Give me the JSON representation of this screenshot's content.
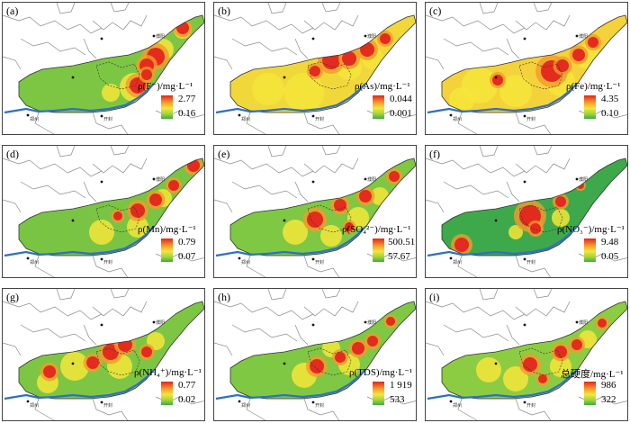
{
  "panels": [
    {
      "label": "(a)",
      "title": "ρ(F⁻)/mg·L⁻¹",
      "max": "2.77",
      "min": "0.16"
    },
    {
      "label": "(b)",
      "title": "ρ(As)/mg·L⁻¹",
      "max": "0.044",
      "min": "0.001"
    },
    {
      "label": "(c)",
      "title": "ρ(Fe)/mg·L⁻¹",
      "max": "4.35",
      "min": "0.10"
    },
    {
      "label": "(d)",
      "title": "ρ(Mn)/mg·L⁻¹",
      "max": "0.79",
      "min": "0.07"
    },
    {
      "label": "(e)",
      "title": "ρ(SO₄²⁻)/mg·L⁻¹",
      "max": "500.51",
      "min": "57.67"
    },
    {
      "label": "(f)",
      "title": "ρ(NO₃⁻)/mg·L⁻¹",
      "max": "9.48",
      "min": "0.05"
    },
    {
      "label": "(g)",
      "title": "ρ(NH₄⁺)/mg·L⁻¹",
      "max": "0.77",
      "min": "0.02"
    },
    {
      "label": "(h)",
      "title": "ρ(TDS)/mg·L⁻¹",
      "max": "1 919",
      "min": "533"
    },
    {
      "label": "(i)",
      "title": "总硬度/mg·L⁻¹",
      "max": "986",
      "min": "322"
    }
  ],
  "cities": {
    "c1": "濮阳",
    "c2": "郑州",
    "c3": "开封"
  },
  "colors": {
    "high": "#e3251d",
    "mid": "#f5e63a",
    "low": "#3ea94a",
    "river": "#2e6fc9",
    "boundary": "#555555"
  }
}
